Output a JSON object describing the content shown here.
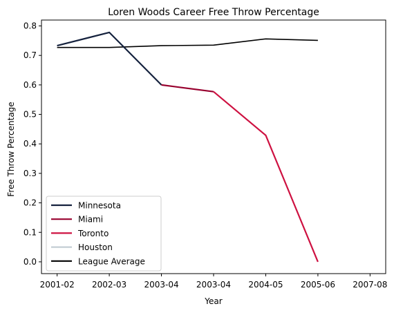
{
  "chart_data": {
    "type": "line",
    "title": "Loren Woods Career Free Throw Percentage",
    "xlabel": "Year",
    "ylabel": "Free Throw Percentage",
    "categories": [
      "2001-02",
      "2002-03",
      "2003-04",
      "2003-04",
      "2004-05",
      "2005-06",
      "2007-08"
    ],
    "ylim": [
      -0.04,
      0.82
    ],
    "yticks": [
      0.0,
      0.1,
      0.2,
      0.3,
      0.4,
      0.5,
      0.6,
      0.7,
      0.8
    ],
    "ytick_labels": [
      "0.0",
      "0.1",
      "0.2",
      "0.3",
      "0.4",
      "0.5",
      "0.6",
      "0.7",
      "0.8"
    ],
    "grid": false,
    "legend_position": "lower-left",
    "series": [
      {
        "name": "Minnesota",
        "color": "#14213d",
        "points": [
          [
            0,
            0.733
          ],
          [
            1,
            0.778
          ],
          [
            2,
            0.6
          ]
        ]
      },
      {
        "name": "Miami",
        "color": "#98002e",
        "points": [
          [
            2,
            0.6
          ],
          [
            3,
            0.577
          ]
        ]
      },
      {
        "name": "Toronto",
        "color": "#ce1141",
        "points": [
          [
            3,
            0.577
          ],
          [
            4,
            0.429
          ],
          [
            5,
            0.0
          ]
        ]
      },
      {
        "name": "Houston",
        "color": "#c4ced4",
        "points": []
      },
      {
        "name": "League Average",
        "color": "#000000",
        "points": [
          [
            0,
            0.727
          ],
          [
            1,
            0.727
          ],
          [
            2,
            0.733
          ],
          [
            3,
            0.735
          ],
          [
            4,
            0.756
          ],
          [
            5,
            0.751
          ]
        ]
      }
    ]
  }
}
